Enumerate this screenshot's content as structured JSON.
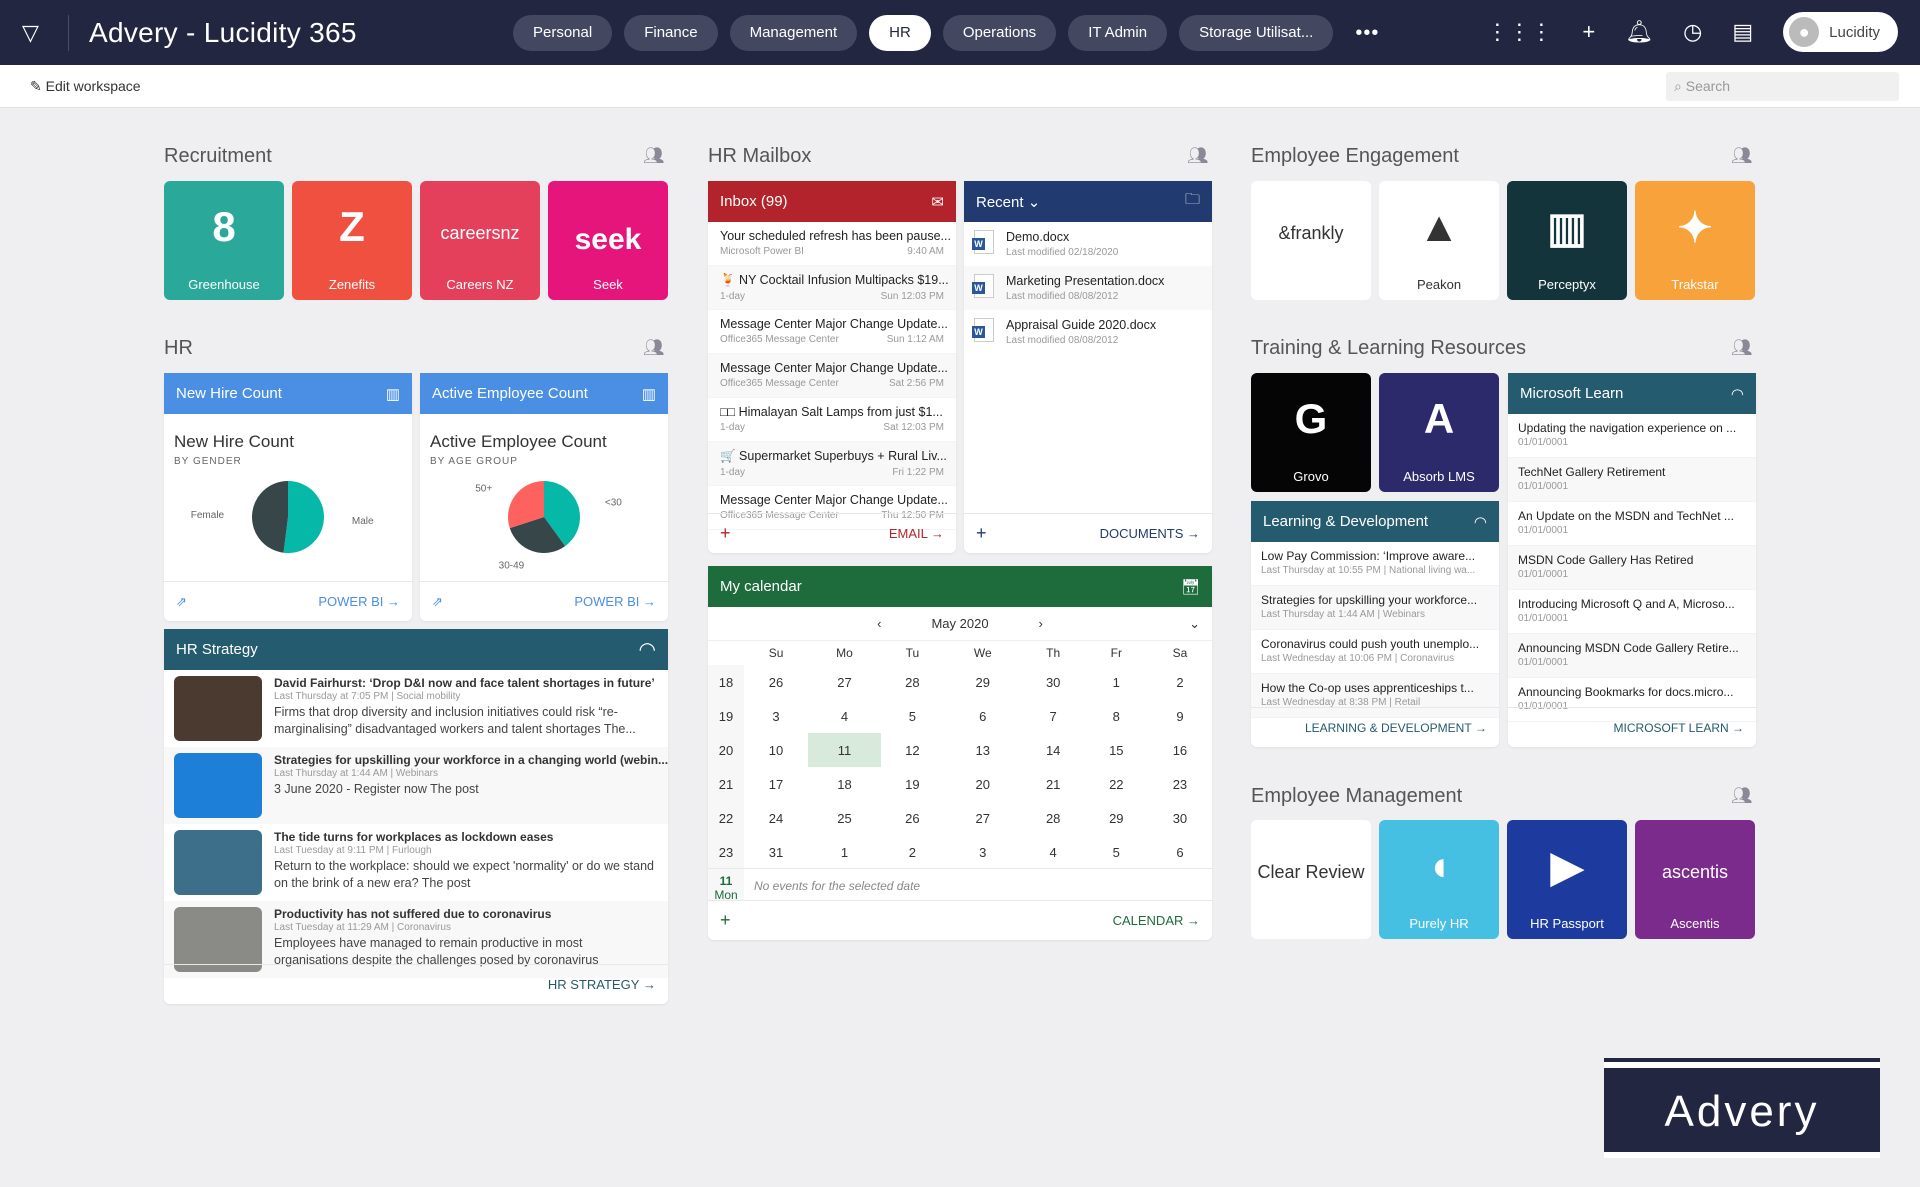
{
  "app": {
    "title": "Advery - Lucidity 365",
    "user": "Lucidity"
  },
  "tabs": [
    "Personal",
    "Finance",
    "Management",
    "HR",
    "Operations",
    "IT Admin",
    "Storage Utilisat..."
  ],
  "active_tab": "HR",
  "subbar": {
    "edit": "Edit workspace",
    "search_placeholder": "Search"
  },
  "recruitment": {
    "title": "Recruitment",
    "tiles": [
      {
        "label": "Greenhouse",
        "color": "#2aa89a",
        "glyph": "8"
      },
      {
        "label": "Zenefits",
        "color": "#f0503f",
        "glyph": "Z"
      },
      {
        "label": "Careers NZ",
        "color": "#e4405c",
        "glyph": "careersnz"
      },
      {
        "label": "Seek",
        "color": "#e6157b",
        "glyph": "seek"
      }
    ]
  },
  "hr": {
    "title": "HR",
    "cards": [
      {
        "header": "New Hire Count",
        "title": "New Hire Count",
        "subtitle": "BY GENDER",
        "footer": "POWER BI",
        "slices": [
          {
            "label": "Male",
            "value": 52,
            "color": "#05b8a8"
          },
          {
            "label": "Female",
            "value": 48,
            "color": "#374649"
          }
        ]
      },
      {
        "header": "Active Employee Count",
        "title": "Active Employee Count",
        "subtitle": "BY AGE GROUP",
        "footer": "POWER BI",
        "slices": [
          {
            "label": "<30",
            "value": 40,
            "color": "#05b8a8"
          },
          {
            "label": "30-49",
            "value": 30,
            "color": "#374649"
          },
          {
            "label": "50+",
            "value": 30,
            "color": "#fd625e"
          }
        ]
      }
    ]
  },
  "hr_strategy": {
    "header": "HR Strategy",
    "footer": "HR STRATEGY",
    "items": [
      {
        "title": "David Fairhurst: ‘Drop D&I now and face talent shortages in future’",
        "meta": "Last Thursday at 7:05 PM | Social mobility",
        "body": "Firms that drop diversity and inclusion initiatives could risk “re-marginalising” disadvantaged workers and talent shortages The...",
        "thumb": "#4a3a30"
      },
      {
        "title": "Strategies for upskilling your workforce in a changing world (webin...",
        "meta": "Last Thursday at 1:44 AM | Webinars",
        "body": "3 June 2020 - Register now The post",
        "thumb": "#1e7fd8"
      },
      {
        "title": "The tide turns for workplaces as lockdown eases",
        "meta": "Last Tuesday at 9:11 PM | Furlough",
        "body": "Return to the workplace: should we expect 'normality' or do we stand on the brink of a new era? The post",
        "thumb": "#3d6e8a"
      },
      {
        "title": "Productivity has not suffered due to coronavirus",
        "meta": "Last Tuesday at 11:29 AM | Coronavirus",
        "body": "Employees have managed to remain productive in most organisations despite the challenges posed by coronavirus",
        "thumb": "#8a8a86"
      }
    ]
  },
  "mailbox": {
    "title": "HR Mailbox",
    "inbox": {
      "header": "Inbox (99)",
      "footer": "EMAIL",
      "items": [
        {
          "subject": "Your scheduled refresh has been pause...",
          "from": "Microsoft Power BI",
          "time": "9:40 AM"
        },
        {
          "subject": "🍹 NY Cocktail Infusion Multipacks $19...",
          "from": "1-day",
          "time": "Sun 12:03 PM"
        },
        {
          "subject": "Message Center Major Change Update...",
          "from": "Office365 Message Center",
          "time": "Sun 1:12 AM"
        },
        {
          "subject": "Message Center Major Change Update...",
          "from": "Office365 Message Center",
          "time": "Sat 2:56 PM"
        },
        {
          "subject": "□□ Himalayan Salt Lamps from just $1...",
          "from": "1-day",
          "time": "Sat 12:03 PM"
        },
        {
          "subject": "🛒 Supermarket Superbuys + Rural Liv...",
          "from": "1-day",
          "time": "Fri 1:22 PM"
        },
        {
          "subject": "Message Center Major Change Update...",
          "from": "Office365 Message Center",
          "time": "Thu 12:50 PM"
        }
      ]
    },
    "recent": {
      "header": "Recent",
      "footer": "DOCUMENTS",
      "items": [
        {
          "name": "Demo.docx",
          "modified": "Last modified 02/18/2020"
        },
        {
          "name": "Marketing Presentation.docx",
          "modified": "Last modified 08/08/2012"
        },
        {
          "name": "Appraisal Guide 2020.docx",
          "modified": "Last modified 08/08/2012"
        }
      ]
    }
  },
  "calendar": {
    "header": "My calendar",
    "month": "May 2020",
    "footer": "CALENDAR",
    "days": [
      "Su",
      "Mo",
      "Tu",
      "We",
      "Th",
      "Fr",
      "Sa"
    ],
    "weeks": [
      {
        "wk": "18",
        "d": [
          "26",
          "27",
          "28",
          "29",
          "30",
          "1",
          "2"
        ]
      },
      {
        "wk": "19",
        "d": [
          "3",
          "4",
          "5",
          "6",
          "7",
          "8",
          "9"
        ]
      },
      {
        "wk": "20",
        "d": [
          "10",
          "11",
          "12",
          "13",
          "14",
          "15",
          "16"
        ]
      },
      {
        "wk": "21",
        "d": [
          "17",
          "18",
          "19",
          "20",
          "21",
          "22",
          "23"
        ]
      },
      {
        "wk": "22",
        "d": [
          "24",
          "25",
          "26",
          "27",
          "28",
          "29",
          "30"
        ]
      },
      {
        "wk": "23",
        "d": [
          "31",
          "1",
          "2",
          "3",
          "4",
          "5",
          "6"
        ]
      }
    ],
    "selected_day": "11",
    "selected_dow": "Mon",
    "no_events": "No events for the selected date"
  },
  "engagement": {
    "title": "Employee Engagement",
    "tiles": [
      {
        "label": "",
        "color": "#ffffff",
        "glyph": "&frankly"
      },
      {
        "label": "Peakon",
        "color": "#ffffff",
        "glyph": "▲"
      },
      {
        "label": "Perceptyx",
        "color": "#13343b",
        "glyph": "▥"
      },
      {
        "label": "Trakstar",
        "color": "#f7a23b",
        "glyph": "✦"
      }
    ]
  },
  "training": {
    "title": "Training & Learning Resources",
    "tiles": [
      {
        "label": "Grovo",
        "color": "#050505",
        "glyph": "G"
      },
      {
        "label": "Absorb LMS",
        "color": "#2c2a6b",
        "glyph": "A"
      }
    ],
    "ld": {
      "header": "Learning & Development",
      "footer": "LEARNING & DEVELOPMENT",
      "items": [
        {
          "title": "Low Pay Commission: ‘Improve aware...",
          "meta": "Last Thursday at 10:55 PM | National living wa..."
        },
        {
          "title": "Strategies for upskilling your workforce...",
          "meta": "Last Thursday at 1:44 AM | Webinars"
        },
        {
          "title": "Coronavirus could push youth unemplo...",
          "meta": "Last Wednesday at 10:06 PM | Coronavirus"
        },
        {
          "title": "How the Co-op uses apprenticeships t...",
          "meta": "Last Wednesday at 8:38 PM | Retail"
        }
      ]
    },
    "ms": {
      "header": "Microsoft Learn",
      "footer": "MICROSOFT LEARN",
      "items": [
        {
          "title": "Updating the navigation experience on ...",
          "meta": "01/01/0001"
        },
        {
          "title": "TechNet Gallery Retirement",
          "meta": "01/01/0001"
        },
        {
          "title": "An Update on the MSDN and TechNet ...",
          "meta": "01/01/0001"
        },
        {
          "title": "MSDN Code Gallery Has Retired",
          "meta": "01/01/0001"
        },
        {
          "title": "Introducing Microsoft Q and A, Microso...",
          "meta": "01/01/0001"
        },
        {
          "title": "Announcing MSDN Code Gallery Retire...",
          "meta": "01/01/0001"
        },
        {
          "title": "Announcing Bookmarks for docs.micro...",
          "meta": "01/01/0001"
        }
      ]
    }
  },
  "management": {
    "title": "Employee Management",
    "tiles": [
      {
        "label": "",
        "color": "#ffffff",
        "glyph": "Clear Review"
      },
      {
        "label": "Purely HR",
        "color": "#45c0e2",
        "glyph": "◖"
      },
      {
        "label": "HR Passport",
        "color": "#1d3b9e",
        "glyph": "▶"
      },
      {
        "label": "Ascentis",
        "color": "#7b2b8c",
        "glyph": "ascentis"
      }
    ]
  },
  "brand": {
    "logo": "Advery"
  }
}
